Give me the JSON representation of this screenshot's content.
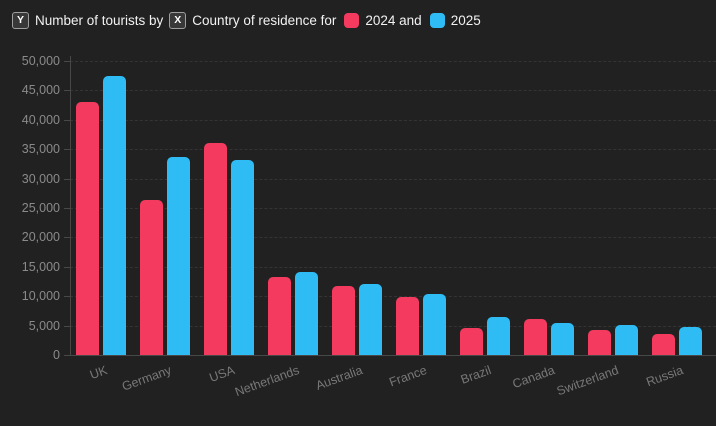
{
  "header": {
    "y_key": "Y",
    "y_text": "Number of tourists by",
    "x_key": "X",
    "x_text": "Country of residence for",
    "legend_2024_text": "2024 and",
    "legend_2025_text": "2025"
  },
  "colors": {
    "background": "#212121",
    "bar_2024": "#f43a5e",
    "bar_2025": "#2fbcf4",
    "grid": "#343434",
    "axis": "#484848",
    "y_tick_label": "#8a8a8a",
    "x_tick_label": "#787878",
    "header_text": "#f2f2f2",
    "badge_bg": "#383838",
    "badge_border": "#9e9e9e"
  },
  "chart_data": {
    "type": "bar",
    "title": "Number of tourists by Country of residence for 2024 and 2025",
    "xlabel": "Country of residence",
    "ylabel": "Number of tourists",
    "categories": [
      "UK",
      "Germany",
      "USA",
      "Netherlands",
      "Australia",
      "France",
      "Brazil",
      "Canada",
      "Switzerland",
      "Russia"
    ],
    "series": [
      {
        "name": "2024",
        "color": "#f43a5e",
        "values": [
          43000,
          26400,
          36100,
          13300,
          11700,
          9800,
          4600,
          6100,
          4200,
          3600
        ]
      },
      {
        "name": "2025",
        "color": "#2fbcf4",
        "values": [
          47500,
          33700,
          33200,
          14200,
          12000,
          10300,
          6400,
          5500,
          5100,
          4700
        ]
      }
    ],
    "ylim": [
      0,
      50000
    ],
    "ytick_step": 5000,
    "y_tick_labels": [
      "0",
      "5,000",
      "10,000",
      "15,000",
      "20,000",
      "25,000",
      "30,000",
      "35,000",
      "40,000",
      "45,000",
      "50,000"
    ],
    "grid": "horizontal-dashed",
    "legend_position": "top-title",
    "x_label_rotation_deg": -20
  }
}
